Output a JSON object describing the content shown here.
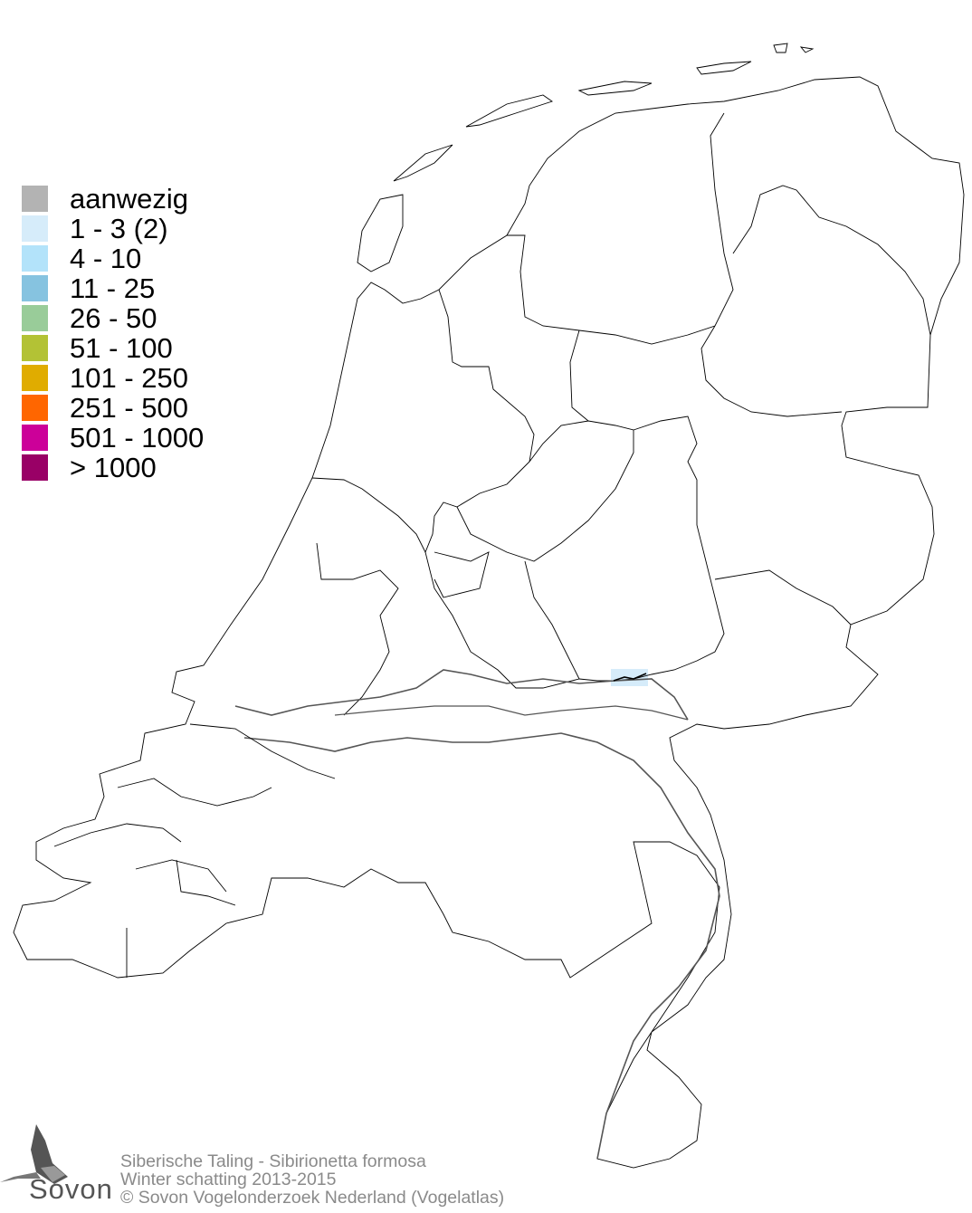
{
  "legend": {
    "items": [
      {
        "label": "aanwezig",
        "color": "#b3b3b3"
      },
      {
        "label": "1 - 3 (2)",
        "color": "#d6ecfa"
      },
      {
        "label": "4 - 10",
        "color": "#b3e3fa"
      },
      {
        "label": "11 - 25",
        "color": "#86c3e0"
      },
      {
        "label": "26 - 50",
        "color": "#99cc99"
      },
      {
        "label": "51 - 100",
        "color": "#b3c235"
      },
      {
        "label": "101 - 250",
        "color": "#e0ac00"
      },
      {
        "label": "251 - 500",
        "color": "#ff6600"
      },
      {
        "label": "501 - 1000",
        "color": "#cc0099"
      },
      {
        "label": "> 1000",
        "color": "#990066"
      }
    ]
  },
  "map": {
    "highlighted_cells": [
      {
        "class": "1 - 3 (2)",
        "color": "#d6ecfa"
      }
    ]
  },
  "footer": {
    "species": "Siberische Taling  - Sibirionetta formosa",
    "period": "Winter schatting 2013-2015",
    "copyright": "© Sovon Vogelonderzoek Nederland (Vogelatlas)"
  },
  "logo": {
    "text": "Sovon"
  }
}
